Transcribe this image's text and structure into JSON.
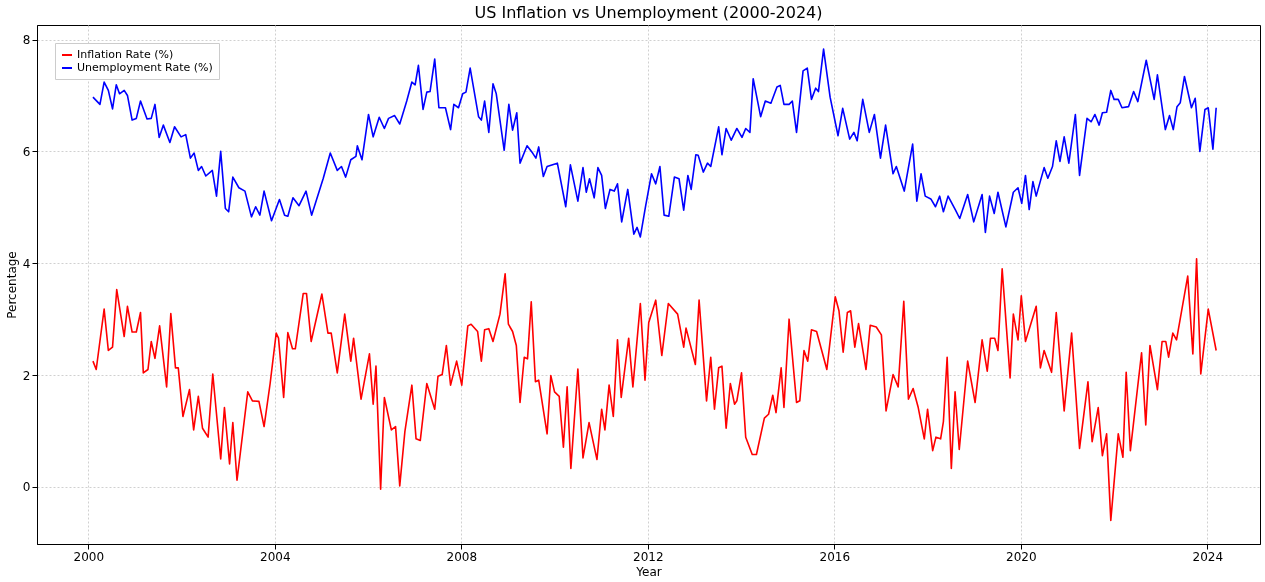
{
  "chart_data": {
    "type": "line",
    "title": "US Inflation vs Unemployment (2000-2024)",
    "xlabel": "Year",
    "ylabel": "Percentage",
    "xlim": [
      1998.9,
      2025.13
    ],
    "xticks": [
      2000,
      2004,
      2008,
      2012,
      2016,
      2020,
      2024
    ],
    "ylim": [
      -1.02,
      8.26
    ],
    "yticks": [
      0,
      2,
      4,
      6,
      8
    ],
    "grid": true,
    "legend": "top left",
    "series": [
      {
        "name": "Inflation Rate (%)",
        "color": "#ff0000",
        "x": [
          2000.1,
          2000.17,
          2000.34,
          2000.43,
          2000.52,
          2000.61,
          2000.77,
          2000.84,
          2000.94,
          2001.03,
          2001.12,
          2001.18,
          2001.28,
          2001.35,
          2001.43,
          2001.53,
          2001.68,
          2001.77,
          2001.87,
          2001.93,
          2002.03,
          2002.17,
          2002.26,
          2002.36,
          2002.45,
          2002.57,
          2002.67,
          2002.84,
          2002.92,
          2003.03,
          2003.1,
          2003.19,
          2003.42,
          2003.52,
          2003.66,
          2003.77,
          2003.9,
          2004.03,
          2004.08,
          2004.19,
          2004.28,
          2004.38,
          2004.44,
          2004.61,
          2004.68,
          2004.78,
          2005.01,
          2005.14,
          2005.21,
          2005.34,
          2005.5,
          2005.63,
          2005.69,
          2005.85,
          2006.03,
          2006.11,
          2006.17,
          2006.27,
          2006.35,
          2006.5,
          2006.59,
          2006.68,
          2006.79,
          2006.94,
          2007.03,
          2007.12,
          2007.26,
          2007.43,
          2007.5,
          2007.59,
          2007.68,
          2007.77,
          2007.9,
          2008.01,
          2008.14,
          2008.21,
          2008.35,
          2008.43,
          2008.5,
          2008.59,
          2008.68,
          2008.83,
          2008.94,
          2009.01,
          2009.1,
          2009.18,
          2009.26,
          2009.35,
          2009.42,
          2009.5,
          2009.59,
          2009.66,
          2009.84,
          2009.92,
          2010.0,
          2010.1,
          2010.19,
          2010.27,
          2010.35,
          2010.5,
          2010.61,
          2010.74,
          2010.91,
          2011.01,
          2011.08,
          2011.17,
          2011.26,
          2011.35,
          2011.43,
          2011.59,
          2011.68,
          2011.84,
          2011.94,
          2012.02,
          2012.17,
          2012.3,
          2012.44,
          2012.64,
          2012.77,
          2012.82,
          2013.02,
          2013.1,
          2013.26,
          2013.35,
          2013.43,
          2013.52,
          2013.59,
          2013.68,
          2013.77,
          2013.86,
          2013.91,
          2014.01,
          2014.1,
          2014.24,
          2014.33,
          2014.5,
          2014.59,
          2014.68,
          2014.75,
          2014.86,
          2014.92,
          2015.03,
          2015.19,
          2015.26,
          2015.35,
          2015.43,
          2015.51,
          2015.62,
          2015.84,
          2016.02,
          2016.1,
          2016.19,
          2016.28,
          2016.35,
          2016.44,
          2016.52,
          2016.68,
          2016.77,
          2016.9,
          2017.01,
          2017.11,
          2017.26,
          2017.37,
          2017.49,
          2017.59,
          2017.69,
          2017.8,
          2017.93,
          2018.0,
          2018.11,
          2018.18,
          2018.28,
          2018.34,
          2018.42,
          2018.51,
          2018.59,
          2018.68,
          2018.86,
          2019.02,
          2019.17,
          2019.28,
          2019.35,
          2019.44,
          2019.51,
          2019.6,
          2019.77,
          2019.84,
          2019.94,
          2020.01,
          2020.1,
          2020.33,
          2020.42,
          2020.5,
          2020.66,
          2020.76,
          2020.93,
          2021.09,
          2021.26,
          2021.44,
          2021.53,
          2021.66,
          2021.75,
          2021.84,
          2021.93,
          2022.09,
          2022.19,
          2022.26,
          2022.35,
          2022.59,
          2022.68,
          2022.77,
          2022.93,
          2023.03,
          2023.11,
          2023.17,
          2023.26,
          2023.34,
          2023.58,
          2023.69,
          2023.77,
          2023.86,
          2024.02,
          2024.19
        ],
        "values": [
          2.25,
          2.1,
          3.18,
          2.44,
          2.5,
          3.53,
          2.69,
          3.23,
          2.77,
          2.77,
          3.12,
          2.04,
          2.1,
          2.6,
          2.3,
          2.88,
          1.79,
          3.1,
          2.13,
          2.13,
          1.26,
          1.74,
          1.02,
          1.62,
          1.05,
          0.89,
          2.02,
          0.5,
          1.42,
          0.41,
          1.15,
          0.12,
          1.7,
          1.54,
          1.53,
          1.08,
          1.85,
          2.75,
          2.66,
          1.6,
          2.76,
          2.47,
          2.47,
          3.46,
          3.46,
          2.6,
          3.45,
          2.75,
          2.75,
          2.04,
          3.09,
          2.25,
          2.66,
          1.57,
          2.38,
          1.48,
          2.16,
          -0.04,
          1.6,
          1.02,
          1.08,
          0.02,
          0.99,
          1.82,
          0.86,
          0.83,
          1.85,
          1.39,
          1.98,
          2.01,
          2.53,
          1.82,
          2.25,
          1.82,
          2.88,
          2.91,
          2.78,
          2.25,
          2.81,
          2.83,
          2.6,
          3.09,
          3.81,
          2.91,
          2.78,
          2.53,
          1.51,
          2.32,
          2.29,
          3.31,
          1.88,
          1.91,
          0.95,
          1.99,
          1.7,
          1.62,
          0.71,
          1.79,
          0.33,
          2.11,
          0.52,
          1.15,
          0.49,
          1.39,
          1.02,
          1.82,
          1.26,
          2.63,
          1.6,
          2.66,
          1.79,
          3.28,
          1.91,
          2.94,
          3.34,
          2.35,
          3.28,
          3.09,
          2.5,
          2.84,
          2.19,
          3.34,
          1.54,
          2.32,
          1.39,
          2.13,
          2.16,
          1.05,
          1.85,
          1.48,
          1.54,
          2.04,
          0.89,
          0.58,
          0.58,
          1.23,
          1.3,
          1.64,
          1.33,
          2.13,
          1.42,
          3.0,
          1.51,
          1.54,
          2.44,
          2.25,
          2.81,
          2.78,
          2.1,
          3.4,
          3.15,
          2.41,
          3.12,
          3.15,
          2.5,
          2.92,
          2.1,
          2.89,
          2.86,
          2.72,
          1.36,
          2.01,
          1.79,
          3.32,
          1.57,
          1.76,
          1.42,
          0.86,
          1.39,
          0.65,
          0.89,
          0.86,
          1.17,
          2.32,
          0.33,
          1.7,
          0.67,
          2.25,
          1.51,
          2.63,
          2.07,
          2.66,
          2.66,
          2.44,
          3.9,
          1.95,
          3.09,
          2.63,
          3.42,
          2.6,
          3.23,
          2.13,
          2.44,
          2.05,
          3.12,
          1.36,
          2.75,
          0.69,
          1.88,
          0.81,
          1.42,
          0.56,
          0.95,
          -0.6,
          0.95,
          0.53,
          2.05,
          0.65,
          2.4,
          1.11,
          2.53,
          1.74,
          2.6,
          2.6,
          2.32,
          2.75,
          2.63,
          3.77,
          2.38,
          4.08,
          2.02,
          3.18,
          2.44
        ]
      },
      {
        "name": "Unemployment Rate (%)",
        "color": "#0000ff",
        "x": [
          2000.1,
          2000.25,
          2000.34,
          2000.43,
          2000.52,
          2000.6,
          2000.67,
          2000.77,
          2000.84,
          2000.94,
          2001.03,
          2001.12,
          2001.26,
          2001.35,
          2001.43,
          2001.52,
          2001.61,
          2001.75,
          2001.85,
          2001.99,
          2002.09,
          2002.19,
          2002.27,
          2002.36,
          2002.43,
          2002.52,
          2002.66,
          2002.75,
          2002.84,
          2002.94,
          2003.01,
          2003.1,
          2003.23,
          2003.36,
          2003.5,
          2003.59,
          2003.68,
          2003.77,
          2003.93,
          2004.1,
          2004.21,
          2004.28,
          2004.39,
          2004.52,
          2004.67,
          2004.79,
          2005.04,
          2005.19,
          2005.34,
          2005.43,
          2005.52,
          2005.63,
          2005.74,
          2005.77,
          2005.87,
          2006.01,
          2006.11,
          2006.24,
          2006.35,
          2006.44,
          2006.57,
          2006.68,
          2006.83,
          2006.94,
          2007.01,
          2007.08,
          2007.18,
          2007.26,
          2007.33,
          2007.43,
          2007.52,
          2007.66,
          2007.77,
          2007.84,
          2007.94,
          2008.03,
          2008.1,
          2008.19,
          2008.37,
          2008.43,
          2008.5,
          2008.59,
          2008.68,
          2008.75,
          2008.92,
          2009.02,
          2009.1,
          2009.19,
          2009.26,
          2009.41,
          2009.53,
          2009.6,
          2009.66,
          2009.76,
          2009.84,
          2010.06,
          2010.24,
          2010.34,
          2010.5,
          2010.61,
          2010.68,
          2010.75,
          2010.85,
          2010.93,
          2011.01,
          2011.09,
          2011.19,
          2011.28,
          2011.35,
          2011.44,
          2011.57,
          2011.7,
          2011.77,
          2011.84,
          2011.95,
          2012.08,
          2012.17,
          2012.26,
          2012.35,
          2012.45,
          2012.57,
          2012.67,
          2012.77,
          2012.86,
          2012.93,
          2013.03,
          2013.08,
          2013.19,
          2013.28,
          2013.35,
          2013.52,
          2013.59,
          2013.68,
          2013.79,
          2013.91,
          2014.02,
          2014.1,
          2014.19,
          2014.26,
          2014.42,
          2014.52,
          2014.64,
          2014.77,
          2014.84,
          2014.92,
          2015.03,
          2015.1,
          2015.19,
          2015.33,
          2015.42,
          2015.51,
          2015.6,
          2015.66,
          2015.77,
          2015.91,
          2016.08,
          2016.18,
          2016.33,
          2016.42,
          2016.49,
          2016.61,
          2016.75,
          2016.86,
          2016.99,
          2017.1,
          2017.26,
          2017.33,
          2017.5,
          2017.68,
          2017.77,
          2017.86,
          2017.95,
          2018.07,
          2018.17,
          2018.26,
          2018.34,
          2018.44,
          2018.6,
          2018.69,
          2018.86,
          2018.99,
          2019.17,
          2019.24,
          2019.33,
          2019.43,
          2019.51,
          2019.68,
          2019.84,
          2019.94,
          2020.02,
          2020.1,
          2020.18,
          2020.26,
          2020.33,
          2020.5,
          2020.58,
          2020.68,
          2020.76,
          2020.84,
          2020.93,
          2021.03,
          2021.17,
          2021.26,
          2021.42,
          2021.51,
          2021.59,
          2021.68,
          2021.75,
          2021.84,
          2021.93,
          2022.0,
          2022.09,
          2022.17,
          2022.31,
          2022.42,
          2022.51,
          2022.69,
          2022.86,
          2022.93,
          2023.1,
          2023.19,
          2023.27,
          2023.35,
          2023.42,
          2023.51,
          2023.66,
          2023.74,
          2023.84,
          2023.95,
          2024.02,
          2024.12,
          2024.19
        ],
        "values": [
          6.97,
          6.84,
          7.24,
          7.09,
          6.76,
          7.19,
          7.03,
          7.09,
          7.0,
          6.56,
          6.59,
          6.9,
          6.58,
          6.59,
          6.84,
          6.25,
          6.47,
          6.16,
          6.44,
          6.26,
          6.3,
          5.88,
          5.97,
          5.66,
          5.73,
          5.56,
          5.66,
          5.2,
          6.0,
          4.98,
          4.92,
          5.54,
          5.35,
          5.29,
          4.83,
          5.01,
          4.86,
          5.29,
          4.76,
          5.14,
          4.86,
          4.84,
          5.17,
          5.03,
          5.29,
          4.86,
          5.52,
          5.97,
          5.66,
          5.73,
          5.54,
          5.85,
          5.91,
          6.1,
          5.85,
          6.66,
          6.26,
          6.61,
          6.41,
          6.59,
          6.64,
          6.49,
          6.9,
          7.24,
          7.19,
          7.54,
          6.75,
          7.06,
          7.07,
          7.65,
          6.78,
          6.78,
          6.39,
          6.84,
          6.78,
          7.03,
          7.06,
          7.49,
          6.62,
          6.56,
          6.9,
          6.34,
          7.21,
          7.03,
          6.02,
          6.84,
          6.38,
          6.69,
          5.79,
          6.1,
          5.97,
          5.88,
          6.08,
          5.55,
          5.73,
          5.79,
          5.01,
          5.76,
          5.11,
          5.71,
          5.27,
          5.51,
          5.17,
          5.71,
          5.57,
          4.98,
          5.32,
          5.29,
          5.42,
          4.74,
          5.32,
          4.52,
          4.64,
          4.47,
          5.01,
          5.6,
          5.42,
          5.73,
          4.86,
          4.84,
          5.54,
          5.51,
          4.95,
          5.57,
          5.32,
          5.94,
          5.93,
          5.63,
          5.79,
          5.73,
          6.44,
          5.94,
          6.41,
          6.2,
          6.41,
          6.25,
          6.41,
          6.34,
          7.3,
          6.62,
          6.9,
          6.86,
          7.15,
          7.18,
          6.84,
          6.84,
          6.9,
          6.34,
          7.44,
          7.49,
          6.93,
          7.13,
          7.07,
          7.83,
          6.97,
          6.28,
          6.77,
          6.22,
          6.34,
          6.19,
          6.93,
          6.34,
          6.66,
          5.88,
          6.47,
          5.6,
          5.73,
          5.29,
          6.13,
          5.11,
          5.6,
          5.2,
          5.15,
          5.01,
          5.2,
          4.92,
          5.2,
          4.95,
          4.8,
          5.23,
          4.74,
          5.23,
          4.55,
          5.2,
          4.89,
          5.27,
          4.65,
          5.27,
          5.35,
          5.07,
          5.57,
          4.96,
          5.46,
          5.2,
          5.71,
          5.52,
          5.73,
          6.19,
          5.82,
          6.26,
          5.79,
          6.66,
          5.57,
          6.59,
          6.53,
          6.66,
          6.47,
          6.69,
          6.7,
          7.09,
          6.93,
          6.93,
          6.78,
          6.8,
          7.07,
          6.89,
          7.63,
          6.93,
          7.37,
          6.39,
          6.64,
          6.39,
          6.8,
          6.87,
          7.34,
          6.78,
          6.95,
          6.0,
          6.75,
          6.78,
          6.04,
          6.78
        ]
      }
    ]
  }
}
